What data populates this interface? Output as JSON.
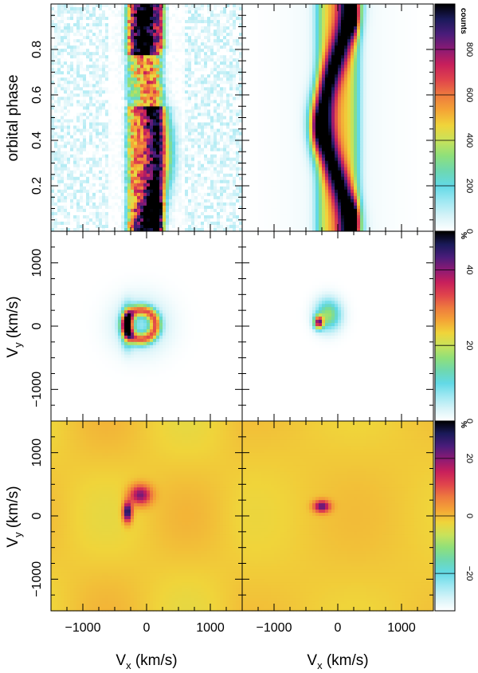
{
  "chart_data": {
    "type": "heatmap",
    "panels": [
      {
        "id": "observed-trailed-spectra",
        "row": 0,
        "col": 0,
        "kind": "trailed"
      },
      {
        "id": "model-trailed-spectra",
        "row": 0,
        "col": 1,
        "kind": "trailed"
      },
      {
        "id": "tomogram-full",
        "row": 1,
        "col": 0,
        "kind": "map"
      },
      {
        "id": "tomogram-model",
        "row": 1,
        "col": 1,
        "kind": "map"
      },
      {
        "id": "residual-map-left",
        "row": 2,
        "col": 0,
        "kind": "map"
      },
      {
        "id": "residual-map-right",
        "row": 2,
        "col": 1,
        "kind": "map"
      }
    ],
    "top_row": {
      "ylabel": "orbital phase",
      "ylim": [
        0.0,
        1.0
      ],
      "yticks": [
        "0.2",
        "0.4",
        "0.6",
        "0.8"
      ],
      "ytick_values": [
        0.2,
        0.4,
        0.6,
        0.8
      ]
    },
    "map_rows": {
      "ylabel": "V",
      "ylabel_sub": "y",
      "ylabel_unit": " (km/s)",
      "ylim": [
        -1500,
        1500
      ],
      "yticks": [
        "1000",
        "0",
        "−1000"
      ],
      "ytick_values": [
        1000,
        0,
        -1000
      ]
    },
    "x_axis": {
      "xlabel": "V",
      "xlabel_sub": "x",
      "xlabel_unit": " (km/s)",
      "xlim": [
        -1500,
        1500
      ],
      "xticks": [
        "−1000",
        "0",
        "1000"
      ],
      "xtick_values": [
        -1000,
        0,
        1000
      ]
    },
    "colorbars": [
      {
        "id": "colorbar-counts",
        "unit": "counts",
        "range": [
          0,
          1000
        ],
        "ticks": [
          "0",
          "200",
          "400",
          "600",
          "800"
        ],
        "tick_values": [
          0,
          200,
          400,
          600,
          800
        ]
      },
      {
        "id": "colorbar-percent",
        "unit": "%",
        "range": [
          0,
          50
        ],
        "ticks": [
          "0",
          "20",
          "40"
        ],
        "tick_values": [
          0,
          20,
          40
        ]
      },
      {
        "id": "colorbar-residual",
        "unit": "%",
        "range": [
          -33,
          33
        ],
        "ticks": [
          "−20",
          "0",
          "20"
        ],
        "tick_values": [
          -20,
          0,
          20
        ]
      }
    ],
    "colormap": [
      "#ffffff",
      "#d6f3f8",
      "#9fe8f2",
      "#62d9e6",
      "#6ed8b0",
      "#8fe07a",
      "#c9e25a",
      "#f0d43a",
      "#f4a436",
      "#ee7a3e",
      "#e0444c",
      "#c81f5b",
      "#8c1a74",
      "#4a1c7a",
      "#1a1a5a",
      "#000000"
    ]
  }
}
